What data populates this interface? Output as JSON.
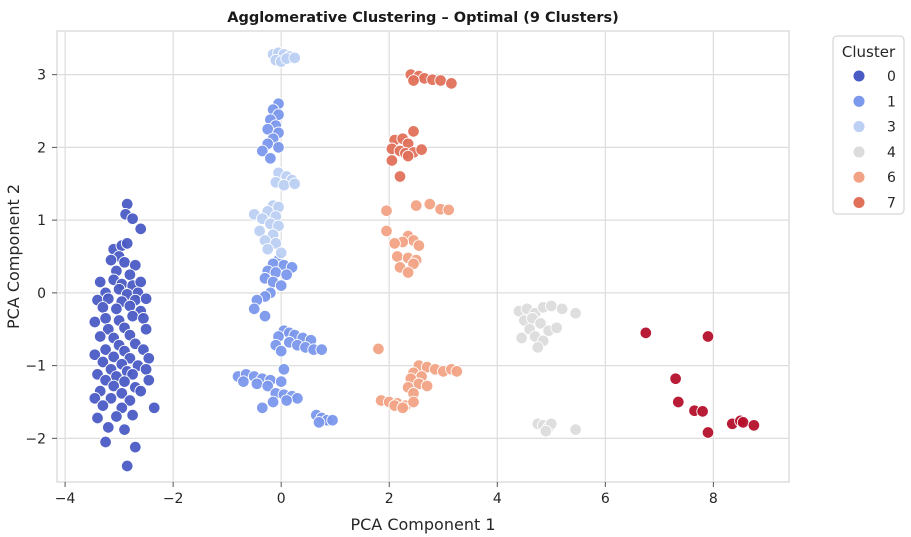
{
  "chart_data": {
    "type": "scatter",
    "title": "Agglomerative Clustering – Optimal (9 Clusters)",
    "xlabel": "PCA Component 1",
    "ylabel": "PCA Component 2",
    "xlim": [
      -4.15,
      9.4
    ],
    "ylim": [
      -2.6,
      3.6
    ],
    "xticks": [
      -4,
      -2,
      0,
      2,
      4,
      6,
      8
    ],
    "yticks": [
      -2,
      -1,
      0,
      1,
      2,
      3
    ],
    "grid": true,
    "legend": {
      "title": "Cluster",
      "placement": "outside-top-right",
      "entries": [
        {
          "label": "0",
          "color": "#4a5bc4"
        },
        {
          "label": "1",
          "color": "#7b98ec"
        },
        {
          "label": "3",
          "color": "#bcd0f3"
        },
        {
          "label": "4",
          "color": "#dcdcdc"
        },
        {
          "label": "6",
          "color": "#f2a386"
        },
        {
          "label": "7",
          "color": "#e0705a"
        }
      ]
    },
    "series": [
      {
        "name": "0",
        "color": "#4a5bc4",
        "points": [
          [
            -2.85,
            1.22
          ],
          [
            -2.88,
            1.08
          ],
          [
            -2.75,
            1.02
          ],
          [
            -2.6,
            0.88
          ],
          [
            -3.1,
            0.6
          ],
          [
            -2.95,
            0.65
          ],
          [
            -2.85,
            0.68
          ],
          [
            -3.0,
            0.5
          ],
          [
            -3.15,
            0.45
          ],
          [
            -2.9,
            0.42
          ],
          [
            -2.7,
            0.38
          ],
          [
            -3.05,
            0.3
          ],
          [
            -2.8,
            0.25
          ],
          [
            -3.35,
            0.15
          ],
          [
            -3.1,
            0.18
          ],
          [
            -2.95,
            0.12
          ],
          [
            -2.75,
            0.1
          ],
          [
            -2.6,
            0.15
          ],
          [
            -3.25,
            0.0
          ],
          [
            -3.0,
            0.05
          ],
          [
            -2.85,
            -0.02
          ],
          [
            -2.65,
            0.0
          ],
          [
            -3.4,
            -0.1
          ],
          [
            -3.2,
            -0.08
          ],
          [
            -2.95,
            -0.12
          ],
          [
            -2.7,
            -0.1
          ],
          [
            -2.5,
            -0.08
          ],
          [
            -3.3,
            -0.2
          ],
          [
            -3.05,
            -0.22
          ],
          [
            -2.8,
            -0.18
          ],
          [
            -2.6,
            -0.25
          ],
          [
            -3.45,
            -0.4
          ],
          [
            -3.25,
            -0.35
          ],
          [
            -3.0,
            -0.38
          ],
          [
            -2.75,
            -0.32
          ],
          [
            -2.55,
            -0.35
          ],
          [
            -3.2,
            -0.5
          ],
          [
            -2.9,
            -0.48
          ],
          [
            -2.5,
            -0.5
          ],
          [
            -3.35,
            -0.6
          ],
          [
            -3.1,
            -0.62
          ],
          [
            -2.8,
            -0.58
          ],
          [
            -3.0,
            -0.72
          ],
          [
            -2.7,
            -0.7
          ],
          [
            -3.25,
            -0.78
          ],
          [
            -2.9,
            -0.8
          ],
          [
            -2.55,
            -0.78
          ],
          [
            -3.45,
            -0.85
          ],
          [
            -3.1,
            -0.88
          ],
          [
            -2.8,
            -0.9
          ],
          [
            -2.45,
            -0.9
          ],
          [
            -3.3,
            -0.95
          ],
          [
            -2.95,
            -0.98
          ],
          [
            -2.65,
            -1.0
          ],
          [
            -3.15,
            -1.05
          ],
          [
            -2.85,
            -1.08
          ],
          [
            -2.5,
            -1.05
          ],
          [
            -3.4,
            -1.12
          ],
          [
            -3.05,
            -1.15
          ],
          [
            -2.75,
            -1.12
          ],
          [
            -3.25,
            -1.2
          ],
          [
            -2.9,
            -1.22
          ],
          [
            -2.45,
            -1.2
          ],
          [
            -3.1,
            -1.28
          ],
          [
            -2.7,
            -1.3
          ],
          [
            -3.35,
            -1.35
          ],
          [
            -2.95,
            -1.38
          ],
          [
            -2.6,
            -1.35
          ],
          [
            -3.45,
            -1.45
          ],
          [
            -3.15,
            -1.45
          ],
          [
            -2.8,
            -1.48
          ],
          [
            -3.3,
            -1.55
          ],
          [
            -2.95,
            -1.58
          ],
          [
            -2.35,
            -1.58
          ],
          [
            -3.4,
            -1.72
          ],
          [
            -3.05,
            -1.7
          ],
          [
            -2.75,
            -1.68
          ],
          [
            -3.2,
            -1.85
          ],
          [
            -2.9,
            -1.88
          ],
          [
            -3.25,
            -2.05
          ],
          [
            -2.7,
            -2.12
          ],
          [
            -2.85,
            -2.38
          ]
        ]
      },
      {
        "name": "1",
        "color": "#7b98ec",
        "points": [
          [
            -0.05,
            2.6
          ],
          [
            -0.15,
            2.52
          ],
          [
            -0.05,
            2.45
          ],
          [
            -0.2,
            2.38
          ],
          [
            -0.1,
            2.3
          ],
          [
            -0.25,
            2.25
          ],
          [
            -0.05,
            2.2
          ],
          [
            -0.15,
            2.12
          ],
          [
            -0.25,
            2.05
          ],
          [
            -0.05,
            2.0
          ],
          [
            -0.35,
            1.95
          ],
          [
            -0.2,
            1.85
          ],
          [
            -0.05,
            0.45
          ],
          [
            -0.15,
            0.4
          ],
          [
            0.05,
            0.38
          ],
          [
            0.2,
            0.35
          ],
          [
            -0.25,
            0.3
          ],
          [
            -0.1,
            0.28
          ],
          [
            0.1,
            0.25
          ],
          [
            -0.3,
            0.2
          ],
          [
            -0.15,
            0.15
          ],
          [
            0.0,
            0.1
          ],
          [
            -0.2,
            0.0
          ],
          [
            -0.3,
            -0.05
          ],
          [
            -0.45,
            -0.1
          ],
          [
            -0.5,
            -0.22
          ],
          [
            -0.3,
            -0.32
          ],
          [
            0.05,
            -0.52
          ],
          [
            0.15,
            -0.55
          ],
          [
            -0.05,
            -0.6
          ],
          [
            0.25,
            -0.58
          ],
          [
            0.4,
            -0.62
          ],
          [
            0.55,
            -0.65
          ],
          [
            -0.1,
            -0.72
          ],
          [
            0.15,
            -0.68
          ],
          [
            0.3,
            -0.72
          ],
          [
            0.45,
            -0.75
          ],
          [
            0.6,
            -0.78
          ],
          [
            0.0,
            -0.8
          ],
          [
            0.75,
            -0.78
          ],
          [
            0.05,
            -1.05
          ],
          [
            -0.8,
            -1.15
          ],
          [
            -0.65,
            -1.12
          ],
          [
            -0.5,
            -1.15
          ],
          [
            -0.35,
            -1.18
          ],
          [
            -0.2,
            -1.2
          ],
          [
            -0.7,
            -1.22
          ],
          [
            -0.45,
            -1.25
          ],
          [
            -0.25,
            -1.28
          ],
          [
            0.0,
            -1.22
          ],
          [
            -0.1,
            -1.38
          ],
          [
            0.05,
            -1.4
          ],
          [
            0.2,
            -1.42
          ],
          [
            0.3,
            -1.45
          ],
          [
            -0.15,
            -1.5
          ],
          [
            0.1,
            -1.48
          ],
          [
            -0.35,
            -1.58
          ],
          [
            0.65,
            -1.68
          ],
          [
            0.75,
            -1.72
          ],
          [
            0.85,
            -1.75
          ],
          [
            0.7,
            -1.78
          ],
          [
            0.95,
            -1.75
          ]
        ]
      },
      {
        "name": "3",
        "color": "#bcd0f3",
        "points": [
          [
            -0.15,
            3.28
          ],
          [
            -0.05,
            3.3
          ],
          [
            0.05,
            3.28
          ],
          [
            0.15,
            3.25
          ],
          [
            -0.1,
            3.2
          ],
          [
            0.0,
            3.18
          ],
          [
            0.1,
            3.22
          ],
          [
            0.25,
            3.23
          ],
          [
            -0.05,
            1.65
          ],
          [
            0.1,
            1.6
          ],
          [
            0.2,
            1.55
          ],
          [
            -0.1,
            1.52
          ],
          [
            0.05,
            1.48
          ],
          [
            0.25,
            1.5
          ],
          [
            -0.15,
            1.2
          ],
          [
            -0.05,
            1.18
          ],
          [
            -0.25,
            1.12
          ],
          [
            -0.1,
            1.05
          ],
          [
            -0.5,
            1.08
          ],
          [
            -0.35,
            1.02
          ],
          [
            -0.2,
            0.95
          ],
          [
            -0.05,
            0.92
          ],
          [
            -0.4,
            0.85
          ],
          [
            -0.15,
            0.8
          ],
          [
            -0.3,
            0.72
          ],
          [
            -0.1,
            0.68
          ],
          [
            -0.25,
            0.6
          ],
          [
            0.0,
            0.55
          ]
        ]
      },
      {
        "name": "4",
        "color": "#dcdcdc",
        "points": [
          [
            4.4,
            -0.25
          ],
          [
            4.55,
            -0.22
          ],
          [
            4.7,
            -0.28
          ],
          [
            4.85,
            -0.2
          ],
          [
            5.0,
            -0.18
          ],
          [
            5.2,
            -0.22
          ],
          [
            5.45,
            -0.28
          ],
          [
            4.5,
            -0.38
          ],
          [
            4.65,
            -0.35
          ],
          [
            4.8,
            -0.42
          ],
          [
            4.6,
            -0.5
          ],
          [
            4.95,
            -0.52
          ],
          [
            5.1,
            -0.48
          ],
          [
            4.45,
            -0.62
          ],
          [
            4.7,
            -0.6
          ],
          [
            4.85,
            -0.66
          ],
          [
            4.75,
            -0.75
          ],
          [
            4.75,
            -1.8
          ],
          [
            4.85,
            -1.82
          ],
          [
            4.95,
            -1.85
          ],
          [
            5.0,
            -1.8
          ],
          [
            4.9,
            -1.9
          ],
          [
            5.45,
            -1.88
          ]
        ]
      },
      {
        "name": "6",
        "color": "#f2a386",
        "points": [
          [
            2.5,
            1.2
          ],
          [
            2.75,
            1.22
          ],
          [
            2.95,
            1.15
          ],
          [
            3.1,
            1.14
          ],
          [
            1.95,
            1.13
          ],
          [
            2.35,
            0.78
          ],
          [
            2.45,
            0.72
          ],
          [
            2.25,
            0.7
          ],
          [
            2.55,
            0.65
          ],
          [
            2.1,
            0.68
          ],
          [
            1.95,
            0.85
          ],
          [
            2.15,
            0.5
          ],
          [
            2.35,
            0.48
          ],
          [
            2.5,
            0.45
          ],
          [
            2.2,
            0.35
          ],
          [
            2.45,
            0.4
          ],
          [
            2.35,
            0.28
          ],
          [
            1.8,
            -0.77
          ],
          [
            2.55,
            -1.0
          ],
          [
            2.7,
            -1.02
          ],
          [
            2.85,
            -1.05
          ],
          [
            3.0,
            -1.08
          ],
          [
            3.15,
            -1.05
          ],
          [
            3.25,
            -1.08
          ],
          [
            2.45,
            -1.1
          ],
          [
            2.6,
            -1.15
          ],
          [
            2.4,
            -1.18
          ],
          [
            2.55,
            -1.25
          ],
          [
            2.7,
            -1.28
          ],
          [
            2.35,
            -1.3
          ],
          [
            2.45,
            -1.38
          ],
          [
            1.85,
            -1.48
          ],
          [
            2.0,
            -1.5
          ],
          [
            2.15,
            -1.52
          ],
          [
            2.3,
            -1.55
          ],
          [
            2.45,
            -1.5
          ],
          [
            2.1,
            -1.55
          ],
          [
            2.25,
            -1.58
          ]
        ]
      },
      {
        "name": "7",
        "color": "#e0705a",
        "points": [
          [
            2.4,
            3.0
          ],
          [
            2.55,
            2.98
          ],
          [
            2.65,
            2.95
          ],
          [
            2.8,
            2.93
          ],
          [
            2.95,
            2.92
          ],
          [
            2.45,
            2.92
          ],
          [
            3.15,
            2.88
          ],
          [
            2.1,
            2.1
          ],
          [
            2.25,
            2.12
          ],
          [
            2.45,
            2.22
          ],
          [
            2.35,
            2.05
          ],
          [
            2.05,
            1.98
          ],
          [
            2.2,
            1.95
          ],
          [
            2.3,
            1.92
          ],
          [
            2.45,
            1.93
          ],
          [
            2.6,
            1.97
          ],
          [
            2.35,
            1.88
          ],
          [
            2.05,
            1.82
          ],
          [
            2.2,
            1.6
          ]
        ]
      },
      {
        "name": "",
        "color": "#b5102b",
        "points": [
          [
            6.75,
            -0.55
          ],
          [
            7.9,
            -0.6
          ],
          [
            7.3,
            -1.18
          ],
          [
            7.35,
            -1.5
          ],
          [
            7.65,
            -1.62
          ],
          [
            7.8,
            -1.63
          ],
          [
            7.9,
            -1.92
          ],
          [
            8.35,
            -1.8
          ],
          [
            8.5,
            -1.76
          ],
          [
            8.55,
            -1.78
          ],
          [
            8.75,
            -1.82
          ]
        ]
      }
    ]
  }
}
